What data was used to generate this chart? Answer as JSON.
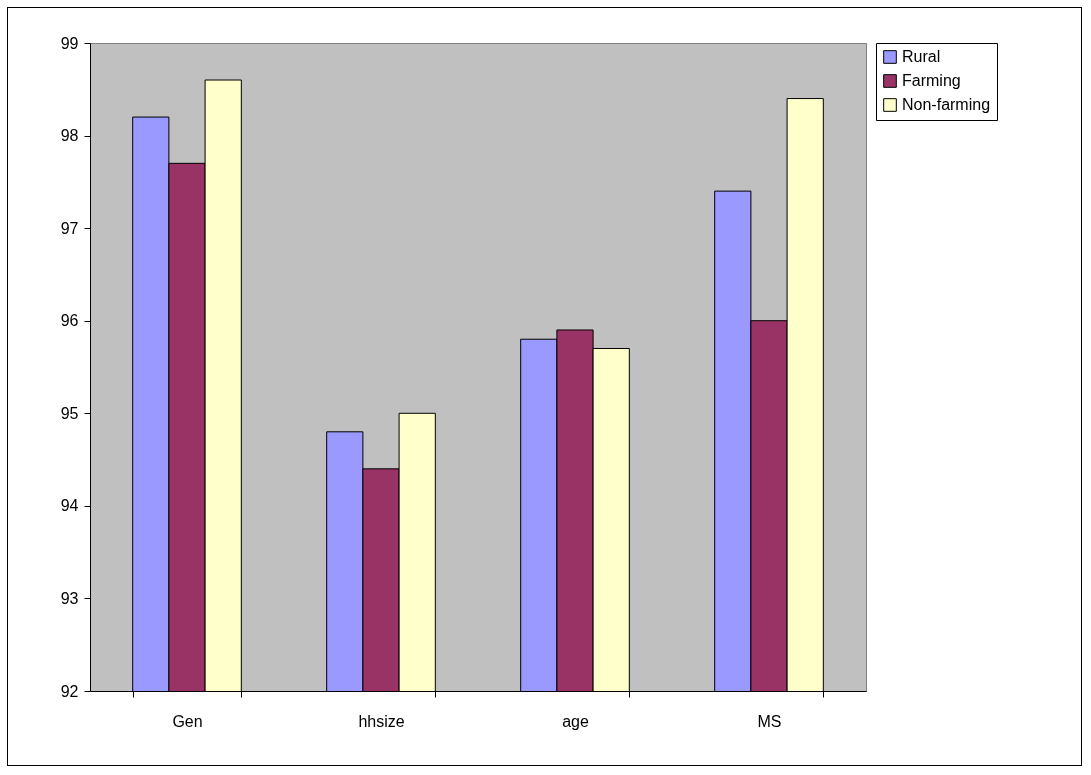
{
  "chart_data": {
    "type": "bar",
    "categories": [
      "Gen",
      "hhsize",
      "age",
      "MS"
    ],
    "series": [
      {
        "name": "Rural",
        "color": "#9999ff",
        "values": [
          98.2,
          94.8,
          95.8,
          97.4
        ]
      },
      {
        "name": "Farming",
        "color": "#993366",
        "values": [
          97.7,
          94.4,
          95.9,
          96.0
        ]
      },
      {
        "name": "Non-farming",
        "color": "#ffffcc",
        "values": [
          98.6,
          95.0,
          95.7,
          98.4
        ]
      }
    ],
    "ylim": [
      92,
      99
    ],
    "yticks": [
      92,
      93,
      94,
      95,
      96,
      97,
      98,
      99
    ],
    "grid": false,
    "legend": "right"
  }
}
